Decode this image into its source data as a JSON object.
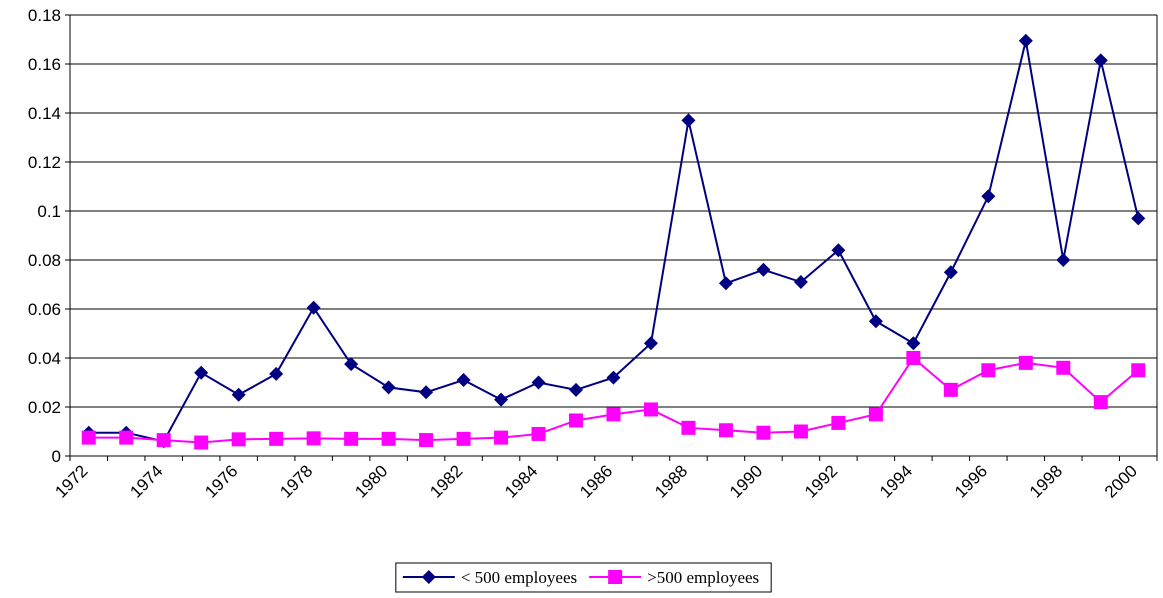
{
  "chart_data": {
    "type": "line",
    "categories": [
      "1972",
      null,
      "1974",
      null,
      "1976",
      null,
      "1978",
      null,
      "1980",
      null,
      "1982",
      null,
      "1984",
      null,
      "1986",
      null,
      "1988",
      null,
      "1990",
      null,
      "1992",
      null,
      "1994",
      null,
      "1996",
      null,
      "1998",
      null,
      "2000"
    ],
    "series": [
      {
        "name": "< 500 employees",
        "color": "#000080",
        "marker": "diamond",
        "values": [
          0.0095,
          0.0095,
          0.006,
          0.034,
          0.025,
          0.0335,
          0.0605,
          0.0375,
          0.028,
          0.026,
          0.031,
          0.023,
          0.03,
          0.027,
          0.032,
          0.046,
          0.137,
          0.0705,
          0.076,
          0.071,
          0.084,
          0.055,
          0.046,
          0.075,
          0.106,
          0.1695,
          0.08,
          0.1615,
          0.097
        ]
      },
      {
        "name": ">500 employees",
        "color": "#ff00ff",
        "marker": "square",
        "values": [
          0.0075,
          0.0075,
          0.0065,
          0.0055,
          0.0068,
          0.007,
          0.0072,
          0.007,
          0.007,
          0.0065,
          0.007,
          0.0075,
          0.009,
          0.0145,
          0.017,
          0.019,
          0.0115,
          0.0105,
          0.0095,
          0.01,
          0.0135,
          0.017,
          0.04,
          0.027,
          0.035,
          0.038,
          0.036,
          0.022,
          0.035
        ]
      }
    ],
    "ylim": [
      0,
      0.18
    ],
    "yticks": [
      0,
      0.02,
      0.04,
      0.06,
      0.08,
      0.1,
      0.12,
      0.14,
      0.16,
      0.18
    ],
    "grid": true,
    "legend": "bottom"
  }
}
